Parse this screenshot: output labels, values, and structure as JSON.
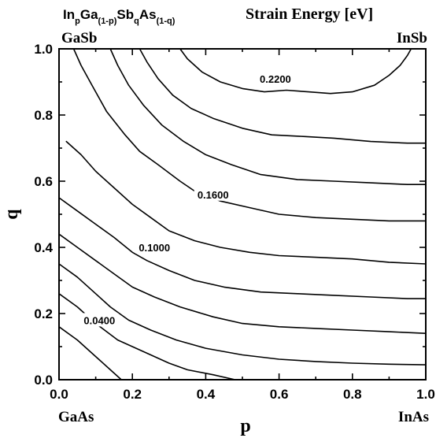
{
  "chart_data": {
    "type": "contour",
    "title": "Strain Energy [eV]",
    "formula": {
      "parts": [
        {
          "text": "In",
          "sub": false
        },
        {
          "text": "p",
          "sub": true
        },
        {
          "text": "Ga",
          "sub": false
        },
        {
          "text": "(1-p)",
          "sub": true
        },
        {
          "text": "Sb",
          "sub": false
        },
        {
          "text": "q",
          "sub": true
        },
        {
          "text": "As",
          "sub": false
        },
        {
          "text": "(1-q)",
          "sub": true
        }
      ]
    },
    "xlabel": "p",
    "ylabel": "q",
    "xlim": [
      0.0,
      1.0
    ],
    "ylim": [
      0.0,
      1.0
    ],
    "x_ticks": [
      "0.0",
      "0.2",
      "0.4",
      "0.6",
      "0.8",
      "1.0"
    ],
    "y_ticks": [
      "0.0",
      "0.2",
      "0.4",
      "0.6",
      "0.8",
      "1.0"
    ],
    "corners": {
      "top_left": "GaSb",
      "top_right": "InSb",
      "bottom_left": "GaAs",
      "bottom_right": "InAs"
    },
    "grid": false,
    "contour_labels": [
      {
        "text": "0.0400",
        "p": 0.11,
        "q": 0.18
      },
      {
        "text": "0.1000",
        "p": 0.26,
        "q": 0.4
      },
      {
        "text": "0.1600",
        "p": 0.42,
        "q": 0.56
      },
      {
        "text": "0.2200",
        "p": 0.59,
        "q": 0.91
      }
    ],
    "contours": [
      [
        [
          0.0,
          0.16
        ],
        [
          0.05,
          0.12
        ],
        [
          0.1,
          0.07
        ],
        [
          0.14,
          0.03
        ],
        [
          0.17,
          0.0
        ]
      ],
      [
        [
          0.0,
          0.26
        ],
        [
          0.05,
          0.22
        ],
        [
          0.1,
          0.17
        ],
        [
          0.16,
          0.12
        ],
        [
          0.24,
          0.08
        ],
        [
          0.3,
          0.05
        ],
        [
          0.35,
          0.03
        ],
        [
          0.42,
          0.015
        ],
        [
          0.48,
          0.0
        ]
      ],
      [
        [
          0.0,
          0.35
        ],
        [
          0.05,
          0.31
        ],
        [
          0.1,
          0.26
        ],
        [
          0.14,
          0.22
        ],
        [
          0.19,
          0.18
        ],
        [
          0.25,
          0.15
        ],
        [
          0.32,
          0.12
        ],
        [
          0.4,
          0.095
        ],
        [
          0.5,
          0.075
        ],
        [
          0.6,
          0.062
        ],
        [
          0.7,
          0.055
        ],
        [
          0.8,
          0.05
        ],
        [
          0.9,
          0.047
        ],
        [
          1.0,
          0.045
        ]
      ],
      [
        [
          0.0,
          0.44
        ],
        [
          0.05,
          0.4
        ],
        [
          0.1,
          0.36
        ],
        [
          0.15,
          0.32
        ],
        [
          0.2,
          0.28
        ],
        [
          0.26,
          0.25
        ],
        [
          0.33,
          0.22
        ],
        [
          0.42,
          0.19
        ],
        [
          0.5,
          0.17
        ],
        [
          0.6,
          0.16
        ],
        [
          0.7,
          0.155
        ],
        [
          0.8,
          0.15
        ],
        [
          0.9,
          0.145
        ],
        [
          1.0,
          0.14
        ]
      ],
      [
        [
          0.0,
          0.55
        ],
        [
          0.05,
          0.51
        ],
        [
          0.1,
          0.47
        ],
        [
          0.15,
          0.43
        ],
        [
          0.2,
          0.385
        ],
        [
          0.24,
          0.36
        ],
        [
          0.3,
          0.33
        ],
        [
          0.37,
          0.3
        ],
        [
          0.45,
          0.28
        ],
        [
          0.55,
          0.265
        ],
        [
          0.65,
          0.26
        ],
        [
          0.75,
          0.255
        ],
        [
          0.85,
          0.25
        ],
        [
          0.95,
          0.245
        ],
        [
          1.0,
          0.245
        ]
      ],
      [
        [
          0.02,
          0.72
        ],
        [
          0.06,
          0.68
        ],
        [
          0.1,
          0.63
        ],
        [
          0.15,
          0.58
        ],
        [
          0.2,
          0.53
        ],
        [
          0.25,
          0.49
        ],
        [
          0.3,
          0.45
        ],
        [
          0.37,
          0.42
        ],
        [
          0.44,
          0.4
        ],
        [
          0.52,
          0.385
        ],
        [
          0.6,
          0.375
        ],
        [
          0.7,
          0.37
        ],
        [
          0.8,
          0.365
        ],
        [
          0.9,
          0.355
        ],
        [
          1.0,
          0.35
        ]
      ],
      [
        [
          0.04,
          1.0
        ],
        [
          0.06,
          0.95
        ],
        [
          0.09,
          0.89
        ],
        [
          0.13,
          0.81
        ],
        [
          0.18,
          0.74
        ],
        [
          0.22,
          0.69
        ],
        [
          0.27,
          0.65
        ],
        [
          0.33,
          0.6
        ],
        [
          0.37,
          0.57
        ],
        [
          0.44,
          0.54
        ],
        [
          0.52,
          0.52
        ],
        [
          0.6,
          0.5
        ],
        [
          0.7,
          0.49
        ],
        [
          0.8,
          0.485
        ],
        [
          0.9,
          0.48
        ],
        [
          1.0,
          0.48
        ]
      ],
      [
        [
          0.14,
          1.0
        ],
        [
          0.16,
          0.95
        ],
        [
          0.19,
          0.89
        ],
        [
          0.23,
          0.83
        ],
        [
          0.28,
          0.77
        ],
        [
          0.34,
          0.72
        ],
        [
          0.4,
          0.68
        ],
        [
          0.47,
          0.65
        ],
        [
          0.55,
          0.62
        ],
        [
          0.65,
          0.605
        ],
        [
          0.75,
          0.6
        ],
        [
          0.85,
          0.595
        ],
        [
          0.95,
          0.59
        ],
        [
          1.0,
          0.59
        ]
      ],
      [
        [
          0.22,
          1.0
        ],
        [
          0.24,
          0.96
        ],
        [
          0.27,
          0.91
        ],
        [
          0.31,
          0.86
        ],
        [
          0.36,
          0.82
        ],
        [
          0.42,
          0.79
        ],
        [
          0.5,
          0.76
        ],
        [
          0.58,
          0.74
        ],
        [
          0.67,
          0.735
        ],
        [
          0.75,
          0.73
        ],
        [
          0.85,
          0.72
        ],
        [
          0.95,
          0.715
        ],
        [
          1.0,
          0.715
        ]
      ],
      [
        [
          0.33,
          1.0
        ],
        [
          0.35,
          0.97
        ],
        [
          0.39,
          0.93
        ],
        [
          0.44,
          0.9
        ],
        [
          0.5,
          0.88
        ],
        [
          0.56,
          0.87
        ],
        [
          0.62,
          0.875
        ],
        [
          0.68,
          0.87
        ],
        [
          0.74,
          0.865
        ],
        [
          0.8,
          0.87
        ],
        [
          0.86,
          0.89
        ],
        [
          0.9,
          0.92
        ],
        [
          0.93,
          0.95
        ],
        [
          0.95,
          0.98
        ],
        [
          0.96,
          1.0
        ]
      ]
    ]
  }
}
